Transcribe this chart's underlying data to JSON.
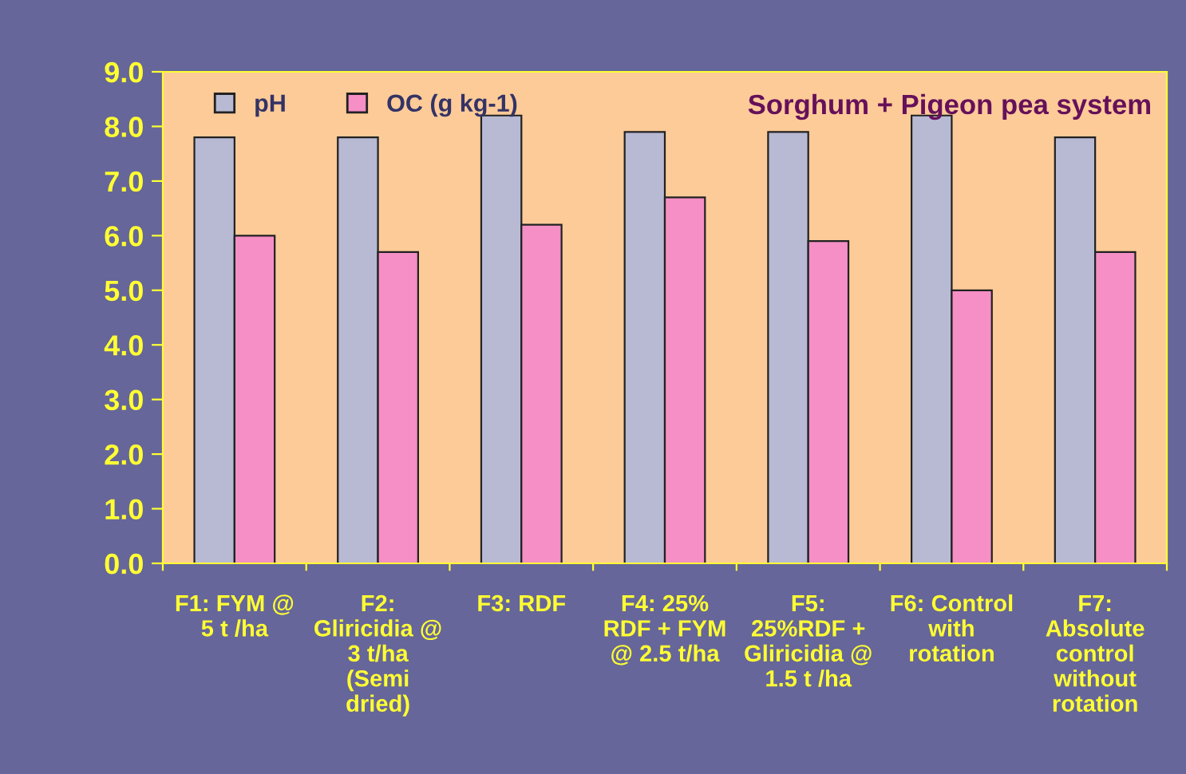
{
  "chart_data": {
    "type": "bar",
    "categories": [
      "F1: FYM @\n5 t /ha",
      "F2:\nGliricidia @\n3 t/ha\n(Semi\ndried)",
      "F3: RDF",
      "F4: 25%\nRDF + FYM\n@ 2.5 t/ha",
      "F5:\n25%RDF +\nGliricidia @\n1.5 t /ha",
      "F6: Control\nwith\nrotation",
      "F7:\nAbsolute\ncontrol\nwithout\nrotation"
    ],
    "series": [
      {
        "name": "pH",
        "color": "#b8bad4",
        "values": [
          7.8,
          7.8,
          8.2,
          7.9,
          7.9,
          8.2,
          7.8
        ]
      },
      {
        "name": "OC (g kg-1)",
        "color": "#f58fc6",
        "values": [
          6.0,
          5.7,
          6.2,
          6.7,
          5.9,
          5.0,
          5.7
        ]
      }
    ],
    "ylim": [
      0,
      9
    ],
    "yticks": [
      {
        "value": 0,
        "label": "0.0"
      },
      {
        "value": 1,
        "label": "1.0"
      },
      {
        "value": 2,
        "label": "2.0"
      },
      {
        "value": 3,
        "label": "3.0"
      },
      {
        "value": 4,
        "label": "4.0"
      },
      {
        "value": 5,
        "label": "5.0"
      },
      {
        "value": 6,
        "label": "6.0"
      },
      {
        "value": 7,
        "label": "7.0"
      },
      {
        "value": 8,
        "label": "8.0"
      },
      {
        "value": 9,
        "label": "9.0"
      }
    ],
    "annotations": [
      "Sorghum + Pigeon pea system"
    ],
    "legend": "top left",
    "grid": false
  }
}
